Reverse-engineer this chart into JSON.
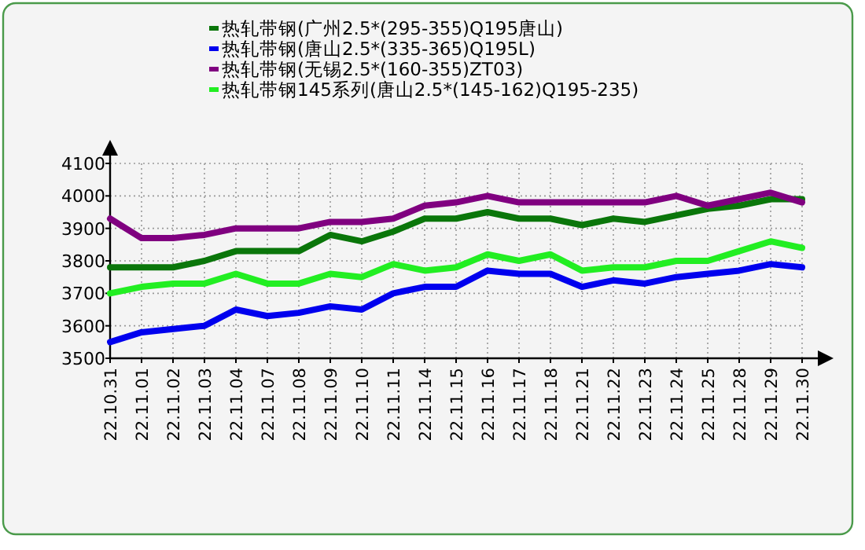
{
  "chart_data": {
    "type": "line",
    "legend": "top",
    "grid": true,
    "marker": "none",
    "line_style": "solid",
    "categories": [
      "22.10.31",
      "22.11.01",
      "22.11.02",
      "22.11.03",
      "22.11.04",
      "22.11.07",
      "22.11.08",
      "22.11.09",
      "22.11.10",
      "22.11.11",
      "22.11.14",
      "22.11.15",
      "22.11.16",
      "22.11.17",
      "22.11.18",
      "22.11.21",
      "22.11.22",
      "22.11.23",
      "22.11.24",
      "22.11.25",
      "22.11.28",
      "22.11.29",
      "22.11.30"
    ],
    "ylim": [
      3500,
      4100
    ],
    "yticks": [
      3500,
      3600,
      3700,
      3800,
      3900,
      4000,
      4100
    ],
    "series": [
      {
        "name": "热轧带钢(广州2.5*(295-355)Q195唐山)",
        "color": "#0a760a",
        "values": [
          3780,
          3780,
          3780,
          3800,
          3830,
          3830,
          3830,
          3880,
          3860,
          3890,
          3930,
          3930,
          3950,
          3930,
          3930,
          3910,
          3930,
          3920,
          3940,
          3960,
          3970,
          3990,
          3990
        ]
      },
      {
        "name": "热轧带钢(唐山2.5*(335-365)Q195L)",
        "color": "#0000ee",
        "values": [
          3550,
          3580,
          3590,
          3600,
          3650,
          3630,
          3640,
          3660,
          3650,
          3700,
          3720,
          3720,
          3770,
          3760,
          3760,
          3720,
          3740,
          3730,
          3750,
          3760,
          3770,
          3790,
          3780
        ]
      },
      {
        "name": "热轧带钢(无锡2.5*(160-355)ZT03)",
        "color": "#800080",
        "values": [
          3930,
          3870,
          3870,
          3880,
          3900,
          3900,
          3900,
          3920,
          3920,
          3930,
          3970,
          3980,
          4000,
          3980,
          3980,
          3980,
          3980,
          3980,
          4000,
          3970,
          3990,
          4010,
          3980
        ]
      },
      {
        "name": "热轧带钢145系列(唐山2.5*(145-162)Q195-235)",
        "color": "#22ee22",
        "values": [
          3700,
          3720,
          3730,
          3730,
          3760,
          3730,
          3730,
          3760,
          3750,
          3790,
          3770,
          3780,
          3820,
          3800,
          3820,
          3770,
          3780,
          3780,
          3800,
          3800,
          3830,
          3860,
          3840
        ]
      }
    ]
  }
}
